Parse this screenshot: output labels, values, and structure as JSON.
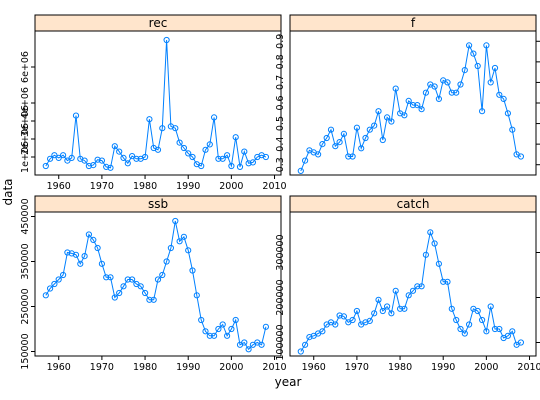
{
  "chart_data": {
    "type": "line",
    "layout": "lattice 2x2 panels",
    "xlabel": "year",
    "ylabel": "data",
    "x_ticks": [
      1960,
      1970,
      1980,
      1990,
      2000,
      2010
    ],
    "color": "#0080ff",
    "strip_color": "#ffe5cc",
    "marker": "open-circle",
    "x": [
      1957,
      1958,
      1959,
      1960,
      1961,
      1962,
      1963,
      1964,
      1965,
      1966,
      1967,
      1968,
      1969,
      1970,
      1971,
      1972,
      1973,
      1974,
      1975,
      1976,
      1977,
      1978,
      1979,
      1980,
      1981,
      1982,
      1983,
      1984,
      1985,
      1986,
      1987,
      1988,
      1989,
      1990,
      1991,
      1992,
      1993,
      1994,
      1995,
      1996,
      1997,
      1998,
      1999,
      2000,
      2001,
      2002,
      2003,
      2004,
      2005,
      2006,
      2007,
      2008
    ],
    "panels": [
      {
        "name": "rec",
        "ylim": [
          0,
          8000000
        ],
        "y_ticks": [
          1000000,
          2000000,
          3000000,
          4000000,
          6000000
        ],
        "y_tick_labels": [
          "1e+06",
          "2e+06",
          "3e+06",
          "4e+06",
          "6e+06"
        ],
        "values": [
          500000,
          900000,
          1100000,
          950000,
          1100000,
          800000,
          950000,
          3300000,
          900000,
          800000,
          500000,
          550000,
          850000,
          800000,
          450000,
          400000,
          1600000,
          1300000,
          950000,
          650000,
          1050000,
          900000,
          900000,
          1000000,
          3100000,
          1500000,
          1400000,
          2600000,
          7500000,
          2700000,
          2600000,
          1800000,
          1500000,
          1200000,
          1000000,
          600000,
          500000,
          1400000,
          1700000,
          3200000,
          900000,
          900000,
          1100000,
          500000,
          2100000,
          450000,
          1300000,
          650000,
          700000,
          1000000,
          1100000,
          1000000
        ]
      },
      {
        "name": "f",
        "ylim": [
          0.25,
          0.95
        ],
        "y_ticks": [
          0.3,
          0.4,
          0.5,
          0.6,
          0.7,
          0.8,
          0.9
        ],
        "y_tick_labels": [
          "0.3",
          "0.4",
          "0.5",
          "0.6",
          "0.7",
          "0.8",
          "0.9"
        ],
        "values": [
          0.27,
          0.32,
          0.37,
          0.36,
          0.35,
          0.4,
          0.43,
          0.47,
          0.39,
          0.41,
          0.45,
          0.34,
          0.34,
          0.48,
          0.38,
          0.43,
          0.47,
          0.49,
          0.56,
          0.42,
          0.53,
          0.51,
          0.67,
          0.55,
          0.54,
          0.61,
          0.59,
          0.59,
          0.57,
          0.65,
          0.69,
          0.68,
          0.62,
          0.71,
          0.7,
          0.65,
          0.65,
          0.69,
          0.76,
          0.88,
          0.84,
          0.78,
          0.56,
          0.88,
          0.7,
          0.77,
          0.64,
          0.62,
          0.55,
          0.47,
          0.35,
          0.34
        ]
      },
      {
        "name": "ssb",
        "ylim": [
          140000,
          460000
        ],
        "y_ticks": [
          150000,
          250000,
          350000,
          450000
        ],
        "y_tick_labels": [
          "150000",
          "250000",
          "350000",
          "450000"
        ],
        "values": [
          275000,
          290000,
          300000,
          310000,
          320000,
          370000,
          368000,
          365000,
          345000,
          362000,
          410000,
          398000,
          380000,
          345000,
          315000,
          315000,
          270000,
          280000,
          295000,
          310000,
          310000,
          300000,
          295000,
          280000,
          265000,
          265000,
          310000,
          320000,
          350000,
          380000,
          440000,
          395000,
          405000,
          375000,
          330000,
          275000,
          220000,
          195000,
          185000,
          185000,
          200000,
          210000,
          185000,
          200000,
          220000,
          165000,
          170000,
          155000,
          165000,
          170000,
          165000,
          205000
        ]
      },
      {
        "name": "catch",
        "ylim": [
          70000,
          390000
        ],
        "y_ticks": [
          100000,
          200000,
          300000
        ],
        "y_tick_labels": [
          "100000",
          "200000",
          "300000"
        ],
        "values": [
          80000,
          95000,
          112000,
          115000,
          120000,
          125000,
          140000,
          145000,
          140000,
          160000,
          158000,
          145000,
          150000,
          170000,
          140000,
          145000,
          148000,
          165000,
          195000,
          170000,
          180000,
          165000,
          215000,
          175000,
          175000,
          205000,
          215000,
          225000,
          225000,
          295000,
          345000,
          320000,
          275000,
          235000,
          235000,
          175000,
          150000,
          130000,
          120000,
          140000,
          175000,
          170000,
          150000,
          125000,
          180000,
          130000,
          130000,
          110000,
          115000,
          125000,
          95000,
          100000
        ]
      }
    ]
  }
}
